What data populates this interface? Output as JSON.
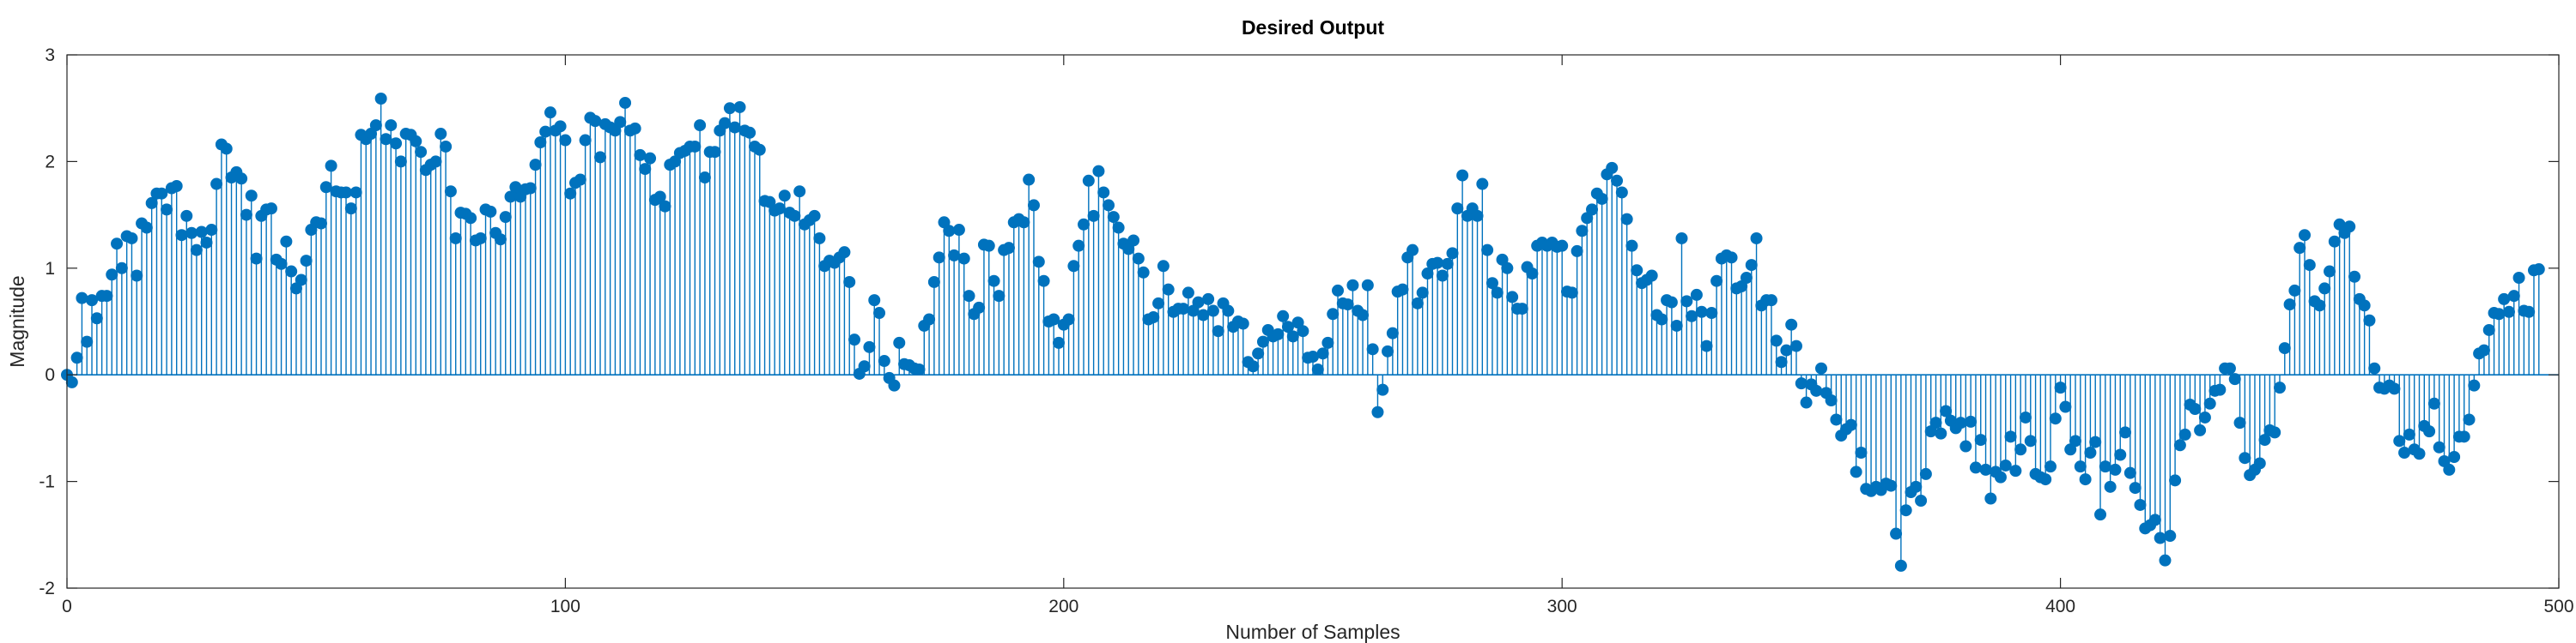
{
  "chart_data": {
    "type": "stem",
    "title": "Desired Output",
    "xlabel": "Number of Samples",
    "ylabel": "Magnitude",
    "xlim": [
      0,
      500
    ],
    "ylim": [
      -2,
      3
    ],
    "x_ticks": [
      0,
      100,
      200,
      300,
      400,
      500
    ],
    "y_ticks": [
      -2,
      -1,
      0,
      1,
      2,
      3
    ],
    "grid": false,
    "baseline": 0,
    "series_color": "#0072BD",
    "series": [
      {
        "x_start": 0,
        "x_step": 1,
        "values": [
          0.0,
          -0.07,
          0.16,
          0.72,
          0.31,
          0.7,
          0.53,
          0.74,
          0.74,
          0.94,
          1.23,
          1.0,
          1.3,
          1.28,
          0.93,
          1.42,
          1.38,
          1.61,
          1.7,
          1.7,
          1.55,
          1.75,
          1.77,
          1.31,
          1.49,
          1.33,
          1.17,
          1.34,
          1.24,
          1.36,
          1.79,
          2.16,
          2.12,
          1.85,
          1.9,
          1.84,
          1.5,
          1.68,
          1.09,
          1.49,
          1.55,
          1.56,
          1.08,
          1.04,
          1.25,
          0.97,
          0.81,
          0.89,
          1.07,
          1.36,
          1.43,
          1.42,
          1.76,
          1.96,
          1.72,
          1.71,
          1.71,
          1.56,
          1.71,
          2.25,
          2.21,
          2.26,
          2.34,
          2.59,
          2.21,
          2.34,
          2.17,
          2.0,
          2.26,
          2.25,
          2.19,
          2.09,
          1.92,
          1.97,
          2.0,
          2.26,
          2.14,
          1.72,
          1.28,
          1.52,
          1.51,
          1.47,
          1.26,
          1.28,
          1.55,
          1.53,
          1.33,
          1.27,
          1.48,
          1.67,
          1.76,
          1.67,
          1.74,
          1.75,
          1.97,
          2.18,
          2.28,
          2.46,
          2.29,
          2.33,
          2.2,
          1.7,
          1.8,
          1.83,
          2.2,
          2.41,
          2.38,
          2.04,
          2.35,
          2.32,
          2.29,
          2.37,
          2.55,
          2.29,
          2.31,
          2.06,
          1.93,
          2.03,
          1.64,
          1.67,
          1.58,
          1.97,
          2.0,
          2.08,
          2.1,
          2.14,
          2.14,
          2.34,
          1.85,
          2.09,
          2.09,
          2.29,
          2.36,
          2.5,
          2.32,
          2.51,
          2.29,
          2.27,
          2.14,
          2.11,
          1.63,
          1.62,
          1.54,
          1.56,
          1.68,
          1.52,
          1.49,
          1.72,
          1.41,
          1.45,
          1.49,
          1.28,
          1.02,
          1.07,
          1.05,
          1.1,
          1.15,
          0.87,
          0.33,
          0.01,
          0.08,
          0.26,
          0.7,
          0.58,
          0.13,
          -0.03,
          -0.1,
          0.3,
          0.1,
          0.09,
          0.06,
          0.05,
          0.46,
          0.52,
          0.87,
          1.1,
          1.43,
          1.35,
          1.12,
          1.36,
          1.09,
          0.74,
          0.57,
          0.63,
          1.22,
          1.21,
          0.88,
          0.74,
          1.17,
          1.19,
          1.43,
          1.46,
          1.43,
          1.83,
          1.59,
          1.06,
          0.88,
          0.5,
          0.52,
          0.3,
          0.47,
          0.52,
          1.02,
          1.21,
          1.41,
          1.82,
          1.49,
          1.91,
          1.71,
          1.59,
          1.48,
          1.38,
          1.23,
          1.18,
          1.26,
          1.09,
          0.96,
          0.52,
          0.54,
          0.67,
          1.02,
          0.8,
          0.59,
          0.62,
          0.62,
          0.77,
          0.6,
          0.68,
          0.56,
          0.71,
          0.6,
          0.41,
          0.67,
          0.6,
          0.45,
          0.5,
          0.48,
          0.12,
          0.08,
          0.2,
          0.31,
          0.42,
          0.36,
          0.38,
          0.55,
          0.45,
          0.36,
          0.49,
          0.41,
          0.16,
          0.17,
          0.05,
          0.2,
          0.3,
          0.57,
          0.79,
          0.67,
          0.66,
          0.84,
          0.6,
          0.56,
          0.84,
          0.24,
          -0.35,
          -0.14,
          0.22,
          0.39,
          0.78,
          0.8,
          1.1,
          1.17,
          0.67,
          0.77,
          0.95,
          1.04,
          1.05,
          0.93,
          1.04,
          1.14,
          1.56,
          1.87,
          1.49,
          1.56,
          1.49,
          1.79,
          1.17,
          0.86,
          0.77,
          1.08,
          1.0,
          0.73,
          0.62,
          0.62,
          1.01,
          0.95,
          1.21,
          1.24,
          1.21,
          1.24,
          1.2,
          1.21,
          0.78,
          0.77,
          1.16,
          1.35,
          1.47,
          1.55,
          1.7,
          1.65,
          1.88,
          1.94,
          1.82,
          1.71,
          1.46,
          1.21,
          0.98,
          0.86,
          0.89,
          0.93,
          0.56,
          0.52,
          0.7,
          0.68,
          0.46,
          1.28,
          0.69,
          0.55,
          0.75,
          0.59,
          0.27,
          0.58,
          0.88,
          1.09,
          1.12,
          1.1,
          0.81,
          0.83,
          0.91,
          1.03,
          1.28,
          0.65,
          0.7,
          0.7,
          0.32,
          0.12,
          0.23,
          0.47,
          0.27,
          -0.08,
          -0.26,
          -0.09,
          -0.15,
          0.06,
          -0.17,
          -0.24,
          -0.42,
          -0.57,
          -0.51,
          -0.47,
          -0.91,
          -0.73,
          -1.07,
          -1.09,
          -1.05,
          -1.08,
          -1.02,
          -1.04,
          -1.49,
          -1.79,
          -1.27,
          -1.1,
          -1.05,
          -1.18,
          -0.93,
          -0.53,
          -0.45,
          -0.55,
          -0.34,
          -0.43,
          -0.5,
          -0.45,
          -0.67,
          -0.44,
          -0.87,
          -0.61,
          -0.89,
          -1.16,
          -0.91,
          -0.96,
          -0.85,
          -0.58,
          -0.9,
          -0.7,
          -0.4,
          -0.62,
          -0.93,
          -0.96,
          -0.98,
          -0.86,
          -0.41,
          -0.12,
          -0.3,
          -0.7,
          -0.62,
          -0.86,
          -0.98,
          -0.73,
          -0.63,
          -1.31,
          -0.86,
          -1.05,
          -0.89,
          -0.75,
          -0.54,
          -0.92,
          -1.06,
          -1.22,
          -1.44,
          -1.41,
          -1.36,
          -1.53,
          -1.74,
          -1.51,
          -0.99,
          -0.66,
          -0.56,
          -0.28,
          -0.32,
          -0.52,
          -0.4,
          -0.27,
          -0.15,
          -0.14,
          0.06,
          0.06,
          -0.04,
          -0.45,
          -0.78,
          -0.94,
          -0.89,
          -0.83,
          -0.61,
          -0.52,
          -0.54,
          -0.12,
          0.25,
          0.66,
          0.79,
          1.19,
          1.31,
          1.03,
          0.69,
          0.65,
          0.81,
          0.97,
          1.25,
          1.41,
          1.33,
          1.39,
          0.92,
          0.71,
          0.65,
          0.51,
          0.06,
          -0.12,
          -0.13,
          -0.1,
          -0.13,
          -0.62,
          -0.73,
          -0.56,
          -0.7,
          -0.74,
          -0.48,
          -0.53,
          -0.27,
          -0.68,
          -0.81,
          -0.89,
          -0.77,
          -0.58,
          -0.58,
          -0.42,
          -0.1,
          0.2,
          0.23,
          0.42,
          0.58,
          0.57,
          0.71,
          0.59,
          0.74,
          0.91,
          0.6,
          0.59,
          0.98,
          0.99
        ]
      }
    ]
  }
}
